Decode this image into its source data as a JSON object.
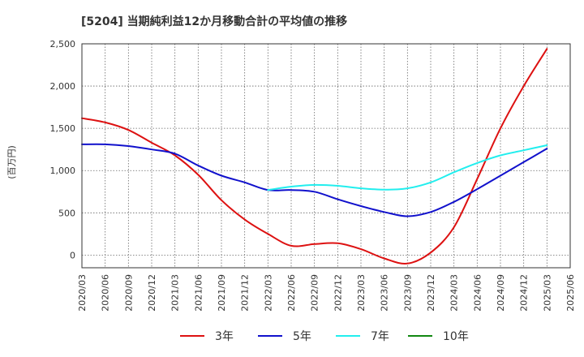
{
  "chart_data": {
    "type": "line",
    "title": "[5204]  当期純利益12か月移動合計の平均値の推移",
    "ylabel": "(百万円)",
    "ylim": [
      -150,
      2500
    ],
    "yticks": [
      0,
      500,
      1000,
      1500,
      2000,
      2500
    ],
    "ytick_labels": [
      "0",
      "500",
      "1,000",
      "1,500",
      "2,000",
      "2,500"
    ],
    "xticks": [
      "2020/03",
      "2020/06",
      "2020/09",
      "2020/12",
      "2021/03",
      "2021/06",
      "2021/09",
      "2021/12",
      "2022/03",
      "2022/06",
      "2022/09",
      "2022/12",
      "2023/03",
      "2023/06",
      "2023/09",
      "2023/12",
      "2024/03",
      "2024/06",
      "2024/09",
      "2024/12",
      "2025/03",
      "2025/06"
    ],
    "grid": true,
    "legend_position": "bottom",
    "series": [
      {
        "name": "3年",
        "color": "#dd1111",
        "values": [
          [
            "2020/03",
            1620
          ],
          [
            "2020/06",
            1570
          ],
          [
            "2020/09",
            1480
          ],
          [
            "2020/12",
            1330
          ],
          [
            "2021/03",
            1180
          ],
          [
            "2021/06",
            950
          ],
          [
            "2021/09",
            650
          ],
          [
            "2021/12",
            420
          ],
          [
            "2022/03",
            250
          ],
          [
            "2022/06",
            110
          ],
          [
            "2022/09",
            130
          ],
          [
            "2022/12",
            140
          ],
          [
            "2023/03",
            70
          ],
          [
            "2023/06",
            -40
          ],
          [
            "2023/09",
            -100
          ],
          [
            "2023/12",
            30
          ],
          [
            "2024/03",
            330
          ],
          [
            "2024/06",
            900
          ],
          [
            "2024/09",
            1500
          ],
          [
            "2024/12",
            2000
          ],
          [
            "2025/03",
            2440
          ]
        ]
      },
      {
        "name": "5年",
        "color": "#1111cc",
        "values": [
          [
            "2020/03",
            1310
          ],
          [
            "2020/06",
            1310
          ],
          [
            "2020/09",
            1290
          ],
          [
            "2020/12",
            1250
          ],
          [
            "2021/03",
            1200
          ],
          [
            "2021/06",
            1060
          ],
          [
            "2021/09",
            940
          ],
          [
            "2021/12",
            860
          ],
          [
            "2022/03",
            770
          ],
          [
            "2022/06",
            770
          ],
          [
            "2022/09",
            750
          ],
          [
            "2022/12",
            660
          ],
          [
            "2023/03",
            580
          ],
          [
            "2023/06",
            510
          ],
          [
            "2023/09",
            460
          ],
          [
            "2023/12",
            510
          ],
          [
            "2024/03",
            630
          ],
          [
            "2024/06",
            780
          ],
          [
            "2024/09",
            940
          ],
          [
            "2024/12",
            1100
          ],
          [
            "2025/03",
            1260
          ]
        ]
      },
      {
        "name": "7年",
        "color": "#22eeee",
        "values": [
          [
            "2022/03",
            770
          ],
          [
            "2022/06",
            810
          ],
          [
            "2022/09",
            830
          ],
          [
            "2022/12",
            820
          ],
          [
            "2023/03",
            790
          ],
          [
            "2023/06",
            775
          ],
          [
            "2023/09",
            790
          ],
          [
            "2023/12",
            860
          ],
          [
            "2024/03",
            980
          ],
          [
            "2024/06",
            1090
          ],
          [
            "2024/09",
            1180
          ],
          [
            "2024/12",
            1240
          ],
          [
            "2025/03",
            1300
          ]
        ]
      },
      {
        "name": "10年",
        "color": "#118811",
        "values": []
      }
    ]
  }
}
